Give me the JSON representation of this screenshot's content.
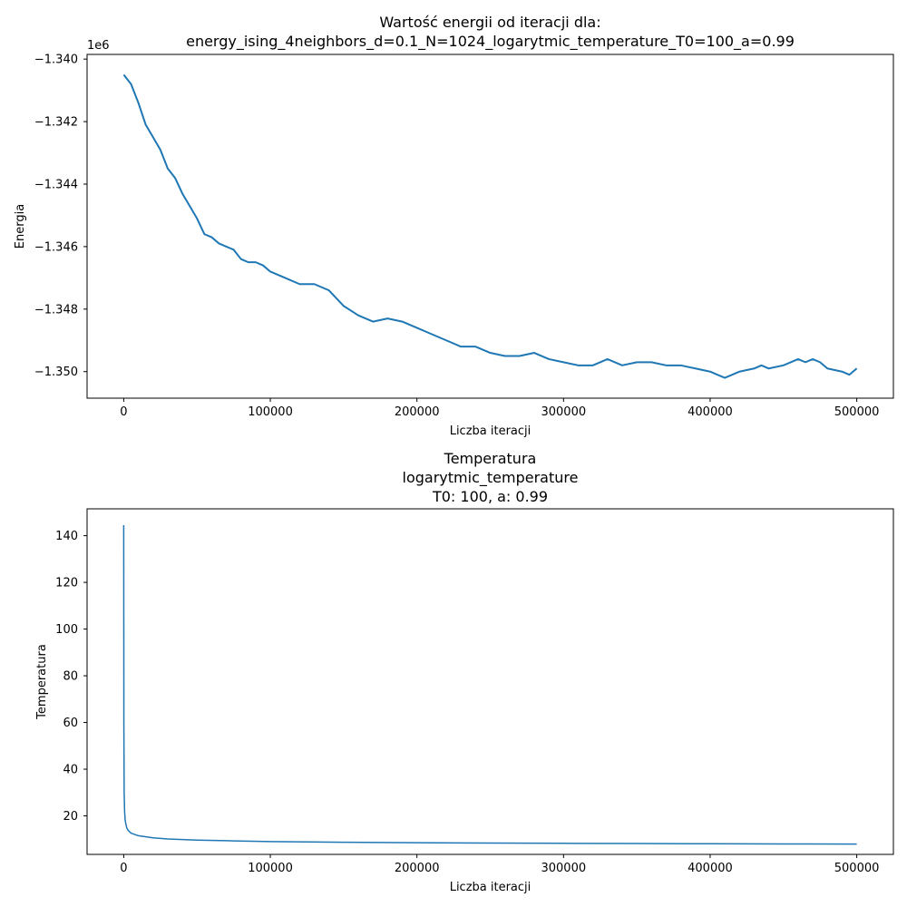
{
  "colors": {
    "line": "#1f77b4",
    "axes": "#000000",
    "background": "#ffffff"
  },
  "chart_data": [
    {
      "type": "line",
      "title_lines": [
        "Wartość energii od iteracji dla:",
        "energy_ising_4neighbors_d=0.1_N=1024_logarytmic_temperature_T0=100_a=0.99"
      ],
      "xlabel": "Liczba iteracji",
      "ylabel": "Energia",
      "offset_text": "1e6",
      "xlim": [
        -25000,
        525000
      ],
      "ylim": [
        -1.35085,
        -1.33985
      ],
      "xticks": [
        0,
        100000,
        200000,
        300000,
        400000,
        500000
      ],
      "xtick_labels": [
        "0",
        "100000",
        "200000",
        "300000",
        "400000",
        "500000"
      ],
      "yticks": [
        -1.34,
        -1.342,
        -1.344,
        -1.346,
        -1.348,
        -1.35
      ],
      "ytick_labels": [
        "−1.340",
        "−1.342",
        "−1.344",
        "−1.346",
        "−1.348",
        "−1.350"
      ],
      "series": [
        {
          "name": "energia",
          "x": [
            0,
            5000,
            10000,
            15000,
            20000,
            25000,
            30000,
            35000,
            40000,
            45000,
            50000,
            55000,
            60000,
            65000,
            70000,
            75000,
            80000,
            85000,
            90000,
            95000,
            100000,
            110000,
            120000,
            130000,
            140000,
            150000,
            160000,
            170000,
            180000,
            190000,
            200000,
            210000,
            220000,
            230000,
            240000,
            250000,
            260000,
            270000,
            280000,
            290000,
            300000,
            310000,
            320000,
            330000,
            340000,
            350000,
            360000,
            370000,
            380000,
            390000,
            400000,
            405000,
            410000,
            415000,
            420000,
            430000,
            435000,
            440000,
            450000,
            460000,
            465000,
            470000,
            475000,
            480000,
            490000,
            495000,
            500000
          ],
          "y": [
            -1.3405,
            -1.3408,
            -1.3414,
            -1.3421,
            -1.3425,
            -1.3429,
            -1.3435,
            -1.3438,
            -1.3443,
            -1.3447,
            -1.3451,
            -1.3456,
            -1.3457,
            -1.3459,
            -1.346,
            -1.3461,
            -1.3464,
            -1.3465,
            -1.3465,
            -1.3466,
            -1.3468,
            -1.347,
            -1.3472,
            -1.3472,
            -1.3474,
            -1.3479,
            -1.3482,
            -1.3484,
            -1.3483,
            -1.3484,
            -1.3486,
            -1.3488,
            -1.349,
            -1.3492,
            -1.3492,
            -1.3494,
            -1.3495,
            -1.3495,
            -1.3494,
            -1.3496,
            -1.3497,
            -1.3498,
            -1.3498,
            -1.3496,
            -1.3498,
            -1.3497,
            -1.3497,
            -1.3498,
            -1.3498,
            -1.3499,
            -1.35,
            -1.3501,
            -1.3502,
            -1.3501,
            -1.35,
            -1.3499,
            -1.3498,
            -1.3499,
            -1.3498,
            -1.3496,
            -1.3497,
            -1.3496,
            -1.3497,
            -1.3499,
            -1.35,
            -1.3501,
            -1.3499
          ]
        }
      ]
    },
    {
      "type": "line",
      "title_lines": [
        "Temperatura",
        "logarytmic_temperature",
        "T0: 100, a: 0.99"
      ],
      "xlabel": "Liczba iteracji",
      "ylabel": "Temperatura",
      "xlim": [
        -25000,
        525000
      ],
      "ylim": [
        3.5,
        151.5
      ],
      "xticks": [
        0,
        100000,
        200000,
        300000,
        400000,
        500000
      ],
      "xtick_labels": [
        "0",
        "100000",
        "200000",
        "300000",
        "400000",
        "500000"
      ],
      "yticks": [
        20,
        40,
        60,
        80,
        100,
        120,
        140
      ],
      "ytick_labels": [
        "20",
        "40",
        "60",
        "80",
        "100",
        "120",
        "140"
      ],
      "series": [
        {
          "name": "temperatura",
          "x": [
            0,
            100,
            300,
            600,
            1000,
            2000,
            3000,
            5000,
            10000,
            20000,
            30000,
            50000,
            75000,
            100000,
            150000,
            200000,
            250000,
            300000,
            350000,
            400000,
            450000,
            500000
          ],
          "y": [
            144.5,
            60,
            30,
            22,
            18,
            15,
            13.8,
            12.6,
            11.5,
            10.6,
            10.1,
            9.6,
            9.3,
            9.0,
            8.7,
            8.5,
            8.35,
            8.25,
            8.15,
            8.05,
            7.98,
            7.9
          ]
        }
      ]
    }
  ]
}
